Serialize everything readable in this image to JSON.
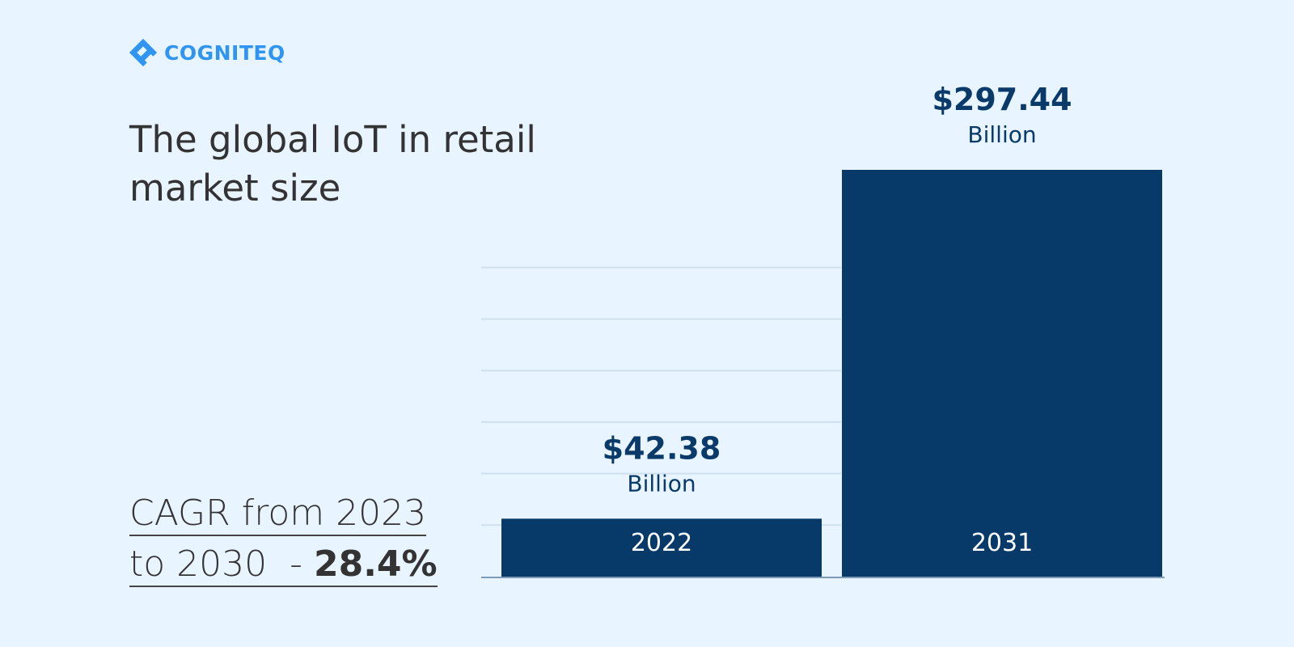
{
  "brand": {
    "name": "COGNITEQ",
    "icon": "cogniteq-logo-icon",
    "color": "#2f95f0"
  },
  "title": {
    "line1": "The global IoT in retail",
    "line2": "market size"
  },
  "cagr": {
    "line1": "CAGR from 2023",
    "line2_prefix": "to 2030  - ",
    "value": "28.4%"
  },
  "colors": {
    "bar": "#083a69",
    "grid": "#cfe0ee",
    "axis": "#7b9bb8",
    "background": "#e8f4ff"
  },
  "chart_data": {
    "type": "bar",
    "title": "The global IoT in retail market size",
    "categories": [
      "2022",
      "2031"
    ],
    "values": [
      42.38,
      297.44
    ],
    "value_labels": [
      "$42.38",
      "$297.44"
    ],
    "unit_label": "Billion",
    "xlabel": "",
    "ylabel": "",
    "ylim": [
      0,
      350
    ],
    "grid": true,
    "legend": "none"
  }
}
